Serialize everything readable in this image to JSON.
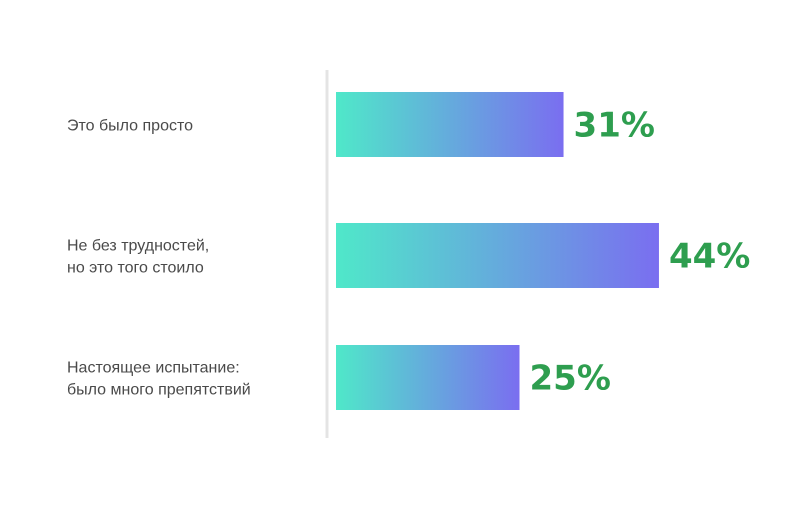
{
  "chart_data": {
    "type": "bar",
    "orientation": "horizontal",
    "categories": [
      [
        "Это было просто"
      ],
      [
        "Не без трудностей,",
        "но это того стоило"
      ],
      [
        "Настоящее испытание:",
        "было много препятствий"
      ]
    ],
    "values": [
      31,
      44,
      25
    ],
    "value_labels": [
      "31%",
      "44%",
      "25%"
    ],
    "title": "",
    "xlabel": "",
    "ylabel": "",
    "xlim": [
      0,
      100
    ],
    "grid": false,
    "legend": "none",
    "colors": {
      "bar_start": "#4fe8c9",
      "bar_end": "#7a6ef0",
      "value_text": "#2e9e4f",
      "label_text": "#4a4a4a",
      "axis_line": "#e4e4e4"
    }
  }
}
